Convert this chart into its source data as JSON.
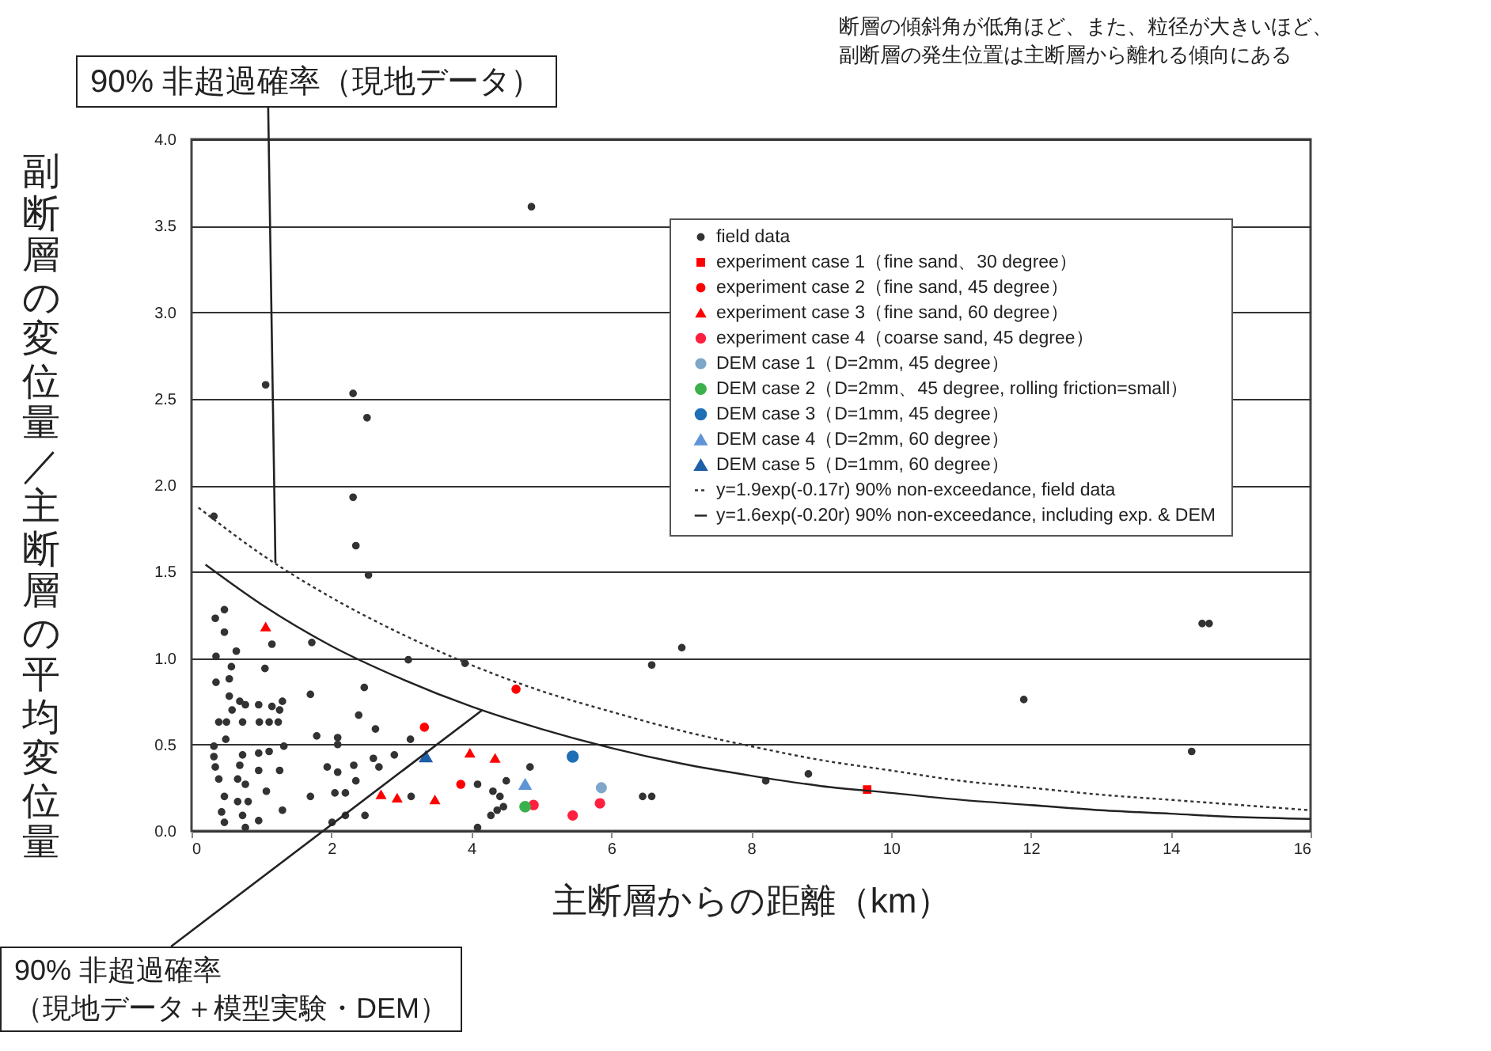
{
  "chart_data": {
    "type": "scatter",
    "xlabel": "主断層からの距離（km）",
    "ylabel": "副断層の変位量／主断層の平均変位量",
    "xlim": [
      0,
      16
    ],
    "xticks": [
      0,
      2,
      4,
      6,
      8,
      10,
      12,
      14,
      16
    ],
    "ylim": [
      0,
      4
    ],
    "yticks": [
      {
        "value": 0,
        "label": "0.0"
      },
      {
        "value": 0.5,
        "label": "0.5"
      },
      {
        "value": 1,
        "label": "1.0"
      },
      {
        "value": 1.5,
        "label": "1.5"
      },
      {
        "value": 2,
        "label": "2.0"
      },
      {
        "value": 2.5,
        "label": "2.5"
      },
      {
        "value": 3,
        "label": "3.0"
      },
      {
        "value": 3.5,
        "label": "3.5"
      },
      {
        "value": 4,
        "label": "4.0"
      }
    ],
    "grid": "y",
    "legend": "top right",
    "series": [
      {
        "name": "field data",
        "marker": "circle",
        "color": "#333333",
        "x": [
          4.86,
          1.06,
          2.31,
          2.51,
          2.31,
          2.35,
          2.53,
          0.32,
          7.01,
          6.58,
          8.21,
          8.82,
          6.45,
          6.58,
          14.45,
          14.55,
          11.9,
          14.3,
          3.91,
          3.1,
          1.72,
          1.15,
          0.34,
          0.47,
          0.47,
          0.35,
          0.64,
          0.57,
          0.35,
          0.54,
          1.05,
          1.7,
          2.47,
          2.39,
          2.63,
          3.13,
          0.54,
          0.69,
          0.77,
          0.96,
          1.15,
          1.3,
          1.26,
          0.58,
          0.5,
          0.39,
          0.73,
          0.97,
          1.11,
          1.24,
          0.49,
          0.32,
          0.32,
          0.73,
          0.96,
          1.11,
          1.32,
          1.79,
          2.09,
          2.09,
          2.9,
          2.32,
          2.6,
          2.68,
          1.94,
          2.09,
          0.34,
          0.69,
          0.39,
          0.66,
          0.77,
          0.96,
          1.26,
          1.07,
          0.47,
          0.66,
          0.81,
          1.3,
          1.7,
          2.05,
          2.2,
          0.43,
          0.73,
          0.96,
          0.47,
          0.77,
          2.01,
          2.2,
          2.48,
          3.14,
          4.09,
          4.5,
          4.31,
          4.41,
          4.46,
          4.28,
          4.37,
          4.84,
          4.09,
          2.35
        ],
        "values": [
          3.61,
          2.58,
          2.53,
          2.39,
          1.93,
          1.65,
          1.48,
          1.82,
          1.06,
          0.96,
          0.29,
          0.33,
          0.2,
          0.2,
          1.2,
          1.2,
          0.76,
          0.46,
          0.97,
          0.99,
          1.09,
          1.08,
          1.23,
          1.28,
          1.15,
          1.01,
          1.04,
          0.95,
          0.86,
          0.88,
          0.94,
          0.79,
          0.83,
          0.67,
          0.59,
          0.53,
          0.78,
          0.75,
          0.73,
          0.73,
          0.72,
          0.75,
          0.7,
          0.7,
          0.63,
          0.63,
          0.63,
          0.63,
          0.63,
          0.63,
          0.53,
          0.49,
          0.43,
          0.44,
          0.45,
          0.46,
          0.49,
          0.55,
          0.54,
          0.5,
          0.44,
          0.38,
          0.42,
          0.37,
          0.37,
          0.34,
          0.37,
          0.38,
          0.3,
          0.3,
          0.27,
          0.35,
          0.35,
          0.23,
          0.2,
          0.17,
          0.17,
          0.12,
          0.2,
          0.22,
          0.22,
          0.11,
          0.09,
          0.06,
          0.05,
          0.02,
          0.05,
          0.09,
          0.09,
          0.2,
          0.27,
          0.29,
          0.23,
          0.2,
          0.14,
          0.09,
          0.12,
          0.37,
          0.02,
          0.29
        ]
      },
      {
        "name": "experiment case 1（fine sand、30 degree）",
        "marker": "square",
        "color": "#ff0000",
        "x": [
          9.66
        ],
        "values": [
          0.24
        ]
      },
      {
        "name": "experiment case 2（fine sand, 45 degree）",
        "marker": "circle",
        "color": "#ff0000",
        "x": [
          4.64,
          3.33,
          3.85
        ],
        "values": [
          0.82,
          0.6,
          0.27
        ]
      },
      {
        "name": "experiment case 3（fine sand, 60 degree）",
        "marker": "triangle",
        "color": "#ff0000",
        "x": [
          1.06,
          2.71,
          2.94,
          3.48,
          3.98,
          4.34
        ],
        "values": [
          1.18,
          0.21,
          0.19,
          0.18,
          0.45,
          0.42
        ]
      },
      {
        "name": "experiment case 4（coarse sand, 45 degree）",
        "marker": "circle",
        "color": "#ff2040",
        "x": [
          4.89,
          5.45,
          5.84
        ],
        "values": [
          0.15,
          0.09,
          0.16
        ]
      },
      {
        "name": "DEM case 1（D=2mm, 45 degree）",
        "marker": "circle",
        "color": "#7fa7c9",
        "x": [
          5.86
        ],
        "values": [
          0.25
        ]
      },
      {
        "name": "DEM case 2（D=2mm、45 degree, rolling friction=small）",
        "marker": "circle",
        "color": "#3cb04a",
        "x": [
          4.77
        ],
        "values": [
          0.14
        ]
      },
      {
        "name": "DEM case 3（D=1mm, 45 degree）",
        "marker": "circle",
        "color": "#1f6fb5",
        "x": [
          5.45
        ],
        "values": [
          0.43
        ]
      },
      {
        "name": "DEM case 4（D=2mm, 60 degree）",
        "marker": "triangle",
        "color": "#5f95d6",
        "x": [
          4.77
        ],
        "values": [
          0.27
        ]
      },
      {
        "name": "DEM case 5（D=1mm, 60 degree）",
        "marker": "triangle",
        "color": "#1f5fa8",
        "x": [
          3.35
        ],
        "values": [
          0.43
        ]
      },
      {
        "name": "y=1.9exp(-0.17r)  90% non-exceedance, field data",
        "type": "line",
        "marker": "none",
        "line_style": "dotted",
        "color": "#333333",
        "x": [
          0.1,
          1,
          2,
          3,
          4,
          5,
          6,
          7,
          8,
          9,
          10,
          11,
          12,
          13,
          14,
          15,
          16
        ],
        "values": [
          1.87,
          1.6,
          1.35,
          1.14,
          0.96,
          0.81,
          0.69,
          0.58,
          0.49,
          0.41,
          0.35,
          0.29,
          0.25,
          0.21,
          0.18,
          0.15,
          0.12
        ]
      },
      {
        "name": "y=1.6exp(-0.20r)  90% non-exceedance, including exp. & DEM",
        "type": "line",
        "marker": "none",
        "line_style": "solid",
        "color": "#222222",
        "x": [
          0.2,
          1,
          2,
          3,
          4,
          5,
          6,
          7,
          8,
          9,
          10,
          11,
          12,
          13,
          14,
          15,
          16
        ],
        "values": [
          1.54,
          1.31,
          1.07,
          0.88,
          0.72,
          0.59,
          0.48,
          0.39,
          0.32,
          0.26,
          0.22,
          0.18,
          0.15,
          0.12,
          0.1,
          0.08,
          0.07
        ]
      }
    ],
    "annotations": [
      "断層の傾斜角が低角ほど、また、粒径が大きいほど、",
      "副断層の発生位置は主断層から離れる傾向にある",
      {
        "text": "90% 非超過確率（現地データ）",
        "x": 1.2,
        "y": 1.55
      },
      {
        "text": "90% 非超過確率（現地データ＋模型実験・DEM）",
        "x": 4.16,
        "y": 0.7
      }
    ]
  }
}
